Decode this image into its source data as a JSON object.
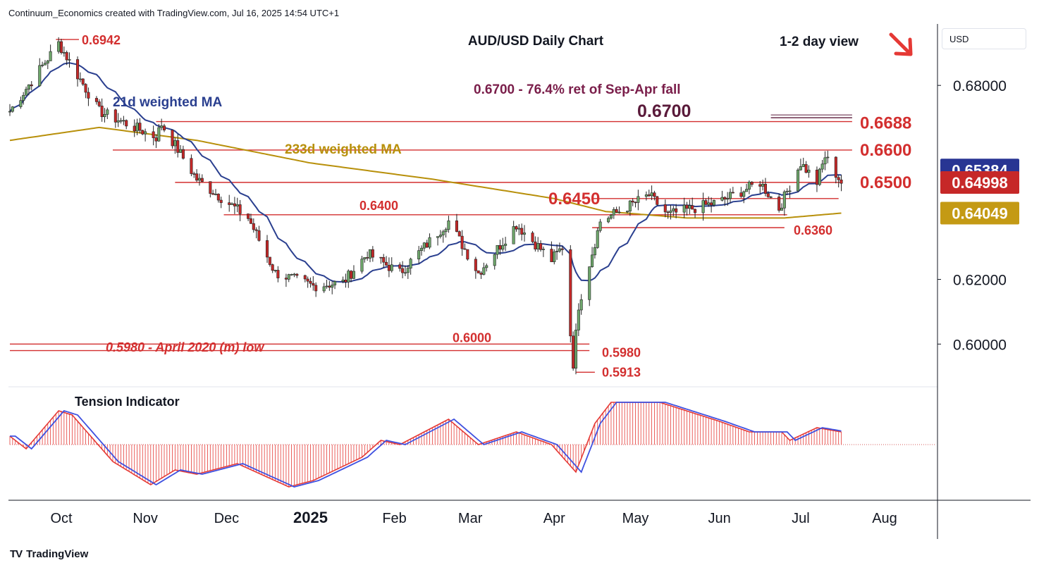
{
  "header": {
    "credit": "Continuum_Economics created with TradingView.com, Jul 16, 2025 14:54 UTC+1"
  },
  "branding": {
    "logo_text": "TV",
    "name": "TradingView"
  },
  "chart_data": {
    "type": "candlestick",
    "title": "AUD/USD Daily Chart",
    "view": "1-2 day view",
    "view_direction": "down",
    "currency": "USD",
    "ylim": [
      0.587,
      0.699
    ],
    "y_ticks": [
      0.6,
      0.62,
      0.68
    ],
    "y_tick_labels": [
      "0.60000",
      "0.62000",
      "0.68000"
    ],
    "x_tick_labels": [
      "Oct",
      "Nov",
      "Dec",
      "2025",
      "Feb",
      "Mar",
      "Apr",
      "May",
      "Jun",
      "Jul",
      "Aug"
    ],
    "x_tick_dates": [
      "2024-10-01",
      "2024-11-01",
      "2024-12-01",
      "2025-01-01",
      "2025-02-01",
      "2025-03-01",
      "2025-04-01",
      "2025-05-01",
      "2025-06-01",
      "2025-07-01",
      "2025-08-01"
    ],
    "x_range": [
      "2024-09-12",
      "2025-08-20"
    ],
    "price_anchors": [
      {
        "date": "2024-09-12",
        "close": 0.672
      },
      {
        "date": "2024-09-30",
        "close": 0.693
      },
      {
        "date": "2024-10-15",
        "close": 0.672
      },
      {
        "date": "2024-11-05",
        "close": 0.664
      },
      {
        "date": "2024-11-07",
        "close": 0.668
      },
      {
        "date": "2024-11-20",
        "close": 0.651
      },
      {
        "date": "2024-12-09",
        "close": 0.639
      },
      {
        "date": "2024-12-19",
        "close": 0.622
      },
      {
        "date": "2025-01-02",
        "close": 0.618
      },
      {
        "date": "2025-01-13",
        "close": 0.619
      },
      {
        "date": "2025-01-22",
        "close": 0.628
      },
      {
        "date": "2025-02-03",
        "close": 0.622
      },
      {
        "date": "2025-02-21",
        "close": 0.638
      },
      {
        "date": "2025-03-04",
        "close": 0.622
      },
      {
        "date": "2025-03-18",
        "close": 0.637
      },
      {
        "date": "2025-03-31",
        "close": 0.626
      },
      {
        "date": "2025-04-04",
        "close": 0.63
      },
      {
        "date": "2025-04-08",
        "close": 0.594
      },
      {
        "date": "2025-04-10",
        "close": 0.612
      },
      {
        "date": "2025-04-18",
        "close": 0.638
      },
      {
        "date": "2025-05-06",
        "close": 0.646
      },
      {
        "date": "2025-05-13",
        "close": 0.64
      },
      {
        "date": "2025-06-01",
        "close": 0.644
      },
      {
        "date": "2025-06-16",
        "close": 0.65
      },
      {
        "date": "2025-06-23",
        "close": 0.642
      },
      {
        "date": "2025-07-01",
        "close": 0.656
      },
      {
        "date": "2025-07-07",
        "close": 0.65
      },
      {
        "date": "2025-07-10",
        "close": 0.658
      },
      {
        "date": "2025-07-16",
        "close": 0.65
      }
    ],
    "ma_233d_anchors": [
      {
        "date": "2024-09-12",
        "value": 0.663
      },
      {
        "date": "2024-10-15",
        "value": 0.667
      },
      {
        "date": "2024-11-20",
        "value": 0.663
      },
      {
        "date": "2025-01-01",
        "value": 0.656
      },
      {
        "date": "2025-02-15",
        "value": 0.651
      },
      {
        "date": "2025-04-01",
        "value": 0.645
      },
      {
        "date": "2025-04-20",
        "value": 0.641
      },
      {
        "date": "2025-05-20",
        "value": 0.639
      },
      {
        "date": "2025-06-25",
        "value": 0.639
      },
      {
        "date": "2025-07-16",
        "value": 0.6405
      }
    ],
    "series": [
      {
        "name": "21d weighted MA",
        "color": "#2a3f8f"
      },
      {
        "name": "233d weighted MA",
        "color": "#b8900b"
      }
    ],
    "levels": [
      {
        "value": 0.6688,
        "label": "0.6688",
        "from": "2024-11-05",
        "to": "2025-07-20"
      },
      {
        "value": 0.66,
        "label": "0.6600",
        "from": "2024-10-20",
        "to": "2025-07-20"
      },
      {
        "value": 0.65,
        "label": "0.6500",
        "from": "2024-11-12",
        "to": "2025-07-16"
      },
      {
        "value": 0.645,
        "label": "0.6450",
        "from": "2025-04-15",
        "to": "2025-07-15"
      },
      {
        "value": 0.64,
        "label": "0.6400",
        "from": "2024-11-30",
        "to": "2025-06-26"
      },
      {
        "value": 0.636,
        "label": "0.6360",
        "from": "2025-04-15",
        "to": "2025-06-25"
      },
      {
        "value": 0.6,
        "label": "0.6000",
        "from": "2024-09-12",
        "to": "2025-04-14"
      },
      {
        "value": 0.598,
        "label": "0.5980",
        "from": "2024-09-12",
        "to": "2025-04-14"
      },
      {
        "value": 0.5913,
        "label": "0.5913",
        "from": "2025-04-09",
        "to": "2025-04-16"
      },
      {
        "value": 0.6942,
        "label": "0.6942",
        "from": "2024-09-29",
        "to": "2024-10-02"
      },
      {
        "value": 0.67,
        "label": "0.6700",
        "from": "2025-06-20",
        "to": "2025-07-20"
      }
    ],
    "annotations": {
      "target_note": "0.6700 - 76.4% ret of Sep-Apr fall",
      "april_low_note": "0.5980 - April 2020 (m) low"
    },
    "price_badges": [
      {
        "value": 0.65384,
        "label": "0.65384",
        "color": "#283593"
      },
      {
        "value": 0.64998,
        "label": "0.64998",
        "color": "#c62828"
      },
      {
        "value": 0.64049,
        "label": "0.64049",
        "color": "#c49a14"
      }
    ],
    "tension_indicator": {
      "title": "Tension Indicator",
      "anchors": [
        {
          "date": "2024-09-12",
          "value": 0.2
        },
        {
          "date": "2024-09-18",
          "value": -0.1
        },
        {
          "date": "2024-09-30",
          "value": 0.8
        },
        {
          "date": "2024-10-05",
          "value": 0.7
        },
        {
          "date": "2024-10-20",
          "value": -0.4
        },
        {
          "date": "2024-11-03",
          "value": -0.95
        },
        {
          "date": "2024-11-12",
          "value": -0.6
        },
        {
          "date": "2024-11-20",
          "value": -0.7
        },
        {
          "date": "2024-12-05",
          "value": -0.45
        },
        {
          "date": "2024-12-24",
          "value": -1.0
        },
        {
          "date": "2025-01-02",
          "value": -0.85
        },
        {
          "date": "2025-01-20",
          "value": -0.3
        },
        {
          "date": "2025-01-27",
          "value": 0.1
        },
        {
          "date": "2025-02-03",
          "value": 0.0
        },
        {
          "date": "2025-02-21",
          "value": 0.6
        },
        {
          "date": "2025-03-04",
          "value": 0.0
        },
        {
          "date": "2025-03-18",
          "value": 0.3
        },
        {
          "date": "2025-03-31",
          "value": 0.0
        },
        {
          "date": "2025-04-09",
          "value": -0.65
        },
        {
          "date": "2025-04-16",
          "value": 0.5
        },
        {
          "date": "2025-04-22",
          "value": 1.0
        },
        {
          "date": "2025-05-10",
          "value": 1.0
        },
        {
          "date": "2025-06-01",
          "value": 0.55
        },
        {
          "date": "2025-06-12",
          "value": 0.3
        },
        {
          "date": "2025-06-24",
          "value": 0.3
        },
        {
          "date": "2025-06-27",
          "value": 0.1
        },
        {
          "date": "2025-07-07",
          "value": 0.4
        },
        {
          "date": "2025-07-16",
          "value": 0.3
        }
      ]
    }
  }
}
